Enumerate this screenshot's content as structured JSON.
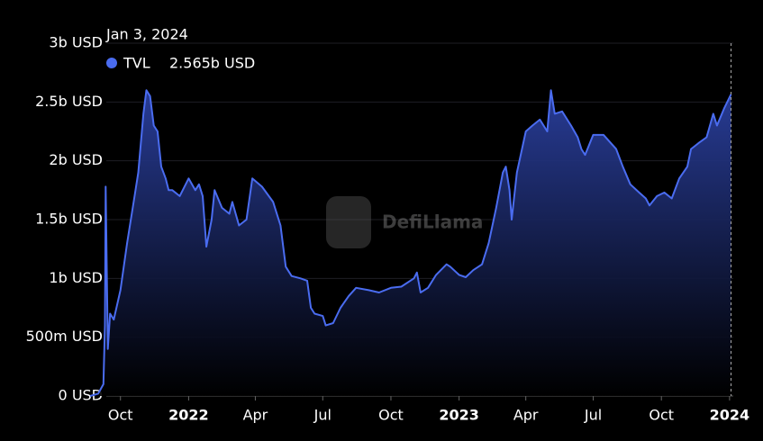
{
  "chart_data": {
    "type": "area",
    "watermark": "DefiLlama",
    "x": [
      "2021-08-21",
      "2021-09-01",
      "2021-09-08",
      "2021-09-10",
      "2021-09-11",
      "2021-09-14",
      "2021-09-17",
      "2021-09-22",
      "2021-10-01",
      "2021-10-10",
      "2021-10-20",
      "2021-10-25",
      "2021-11-01",
      "2021-11-05",
      "2021-11-10",
      "2021-11-15",
      "2021-11-20",
      "2021-11-25",
      "2021-12-01",
      "2021-12-05",
      "2021-12-10",
      "2021-12-20",
      "2022-01-01",
      "2022-01-10",
      "2022-01-15",
      "2022-01-20",
      "2022-01-25",
      "2022-02-01",
      "2022-02-05",
      "2022-02-15",
      "2022-02-25",
      "2022-03-01",
      "2022-03-10",
      "2022-03-20",
      "2022-03-28",
      "2022-04-10",
      "2022-04-25",
      "2022-05-05",
      "2022-05-12",
      "2022-05-20",
      "2022-06-01",
      "2022-06-10",
      "2022-06-15",
      "2022-06-20",
      "2022-07-01",
      "2022-07-05",
      "2022-07-15",
      "2022-07-25",
      "2022-08-05",
      "2022-08-15",
      "2022-09-01",
      "2022-09-15",
      "2022-10-01",
      "2022-10-15",
      "2022-11-01",
      "2022-11-05",
      "2022-11-10",
      "2022-11-20",
      "2022-12-01",
      "2022-12-15",
      "2022-12-20",
      "2023-01-01",
      "2023-01-10",
      "2023-01-20",
      "2023-02-01",
      "2023-02-10",
      "2023-02-20",
      "2023-03-01",
      "2023-03-05",
      "2023-03-10",
      "2023-03-13",
      "2023-03-20",
      "2023-04-01",
      "2023-04-10",
      "2023-04-20",
      "2023-04-30",
      "2023-05-05",
      "2023-05-10",
      "2023-05-20",
      "2023-06-01",
      "2023-06-10",
      "2023-06-15",
      "2023-06-20",
      "2023-07-01",
      "2023-07-15",
      "2023-08-01",
      "2023-08-10",
      "2023-08-20",
      "2023-09-01",
      "2023-09-10",
      "2023-09-15",
      "2023-09-25",
      "2023-10-05",
      "2023-10-15",
      "2023-10-25",
      "2023-11-05",
      "2023-11-10",
      "2023-11-20",
      "2023-12-01",
      "2023-12-10",
      "2023-12-15",
      "2023-12-25",
      "2024-01-03"
    ],
    "series": [
      {
        "name": "TVL",
        "color": "#4a6cf0",
        "values": [
          0.0,
          0.02,
          0.1,
          0.6,
          1.78,
          0.4,
          0.7,
          0.65,
          0.9,
          1.3,
          1.7,
          1.9,
          2.4,
          2.6,
          2.55,
          2.3,
          2.25,
          1.95,
          1.85,
          1.75,
          1.75,
          1.7,
          1.85,
          1.75,
          1.8,
          1.7,
          1.27,
          1.5,
          1.75,
          1.6,
          1.55,
          1.65,
          1.45,
          1.5,
          1.85,
          1.78,
          1.65,
          1.45,
          1.1,
          1.02,
          1.0,
          0.98,
          0.75,
          0.7,
          0.68,
          0.6,
          0.62,
          0.75,
          0.85,
          0.92,
          0.9,
          0.88,
          0.92,
          0.93,
          1.0,
          1.05,
          0.88,
          0.92,
          1.03,
          1.12,
          1.1,
          1.03,
          1.01,
          1.07,
          1.12,
          1.3,
          1.6,
          1.9,
          1.95,
          1.75,
          1.5,
          1.9,
          2.25,
          2.3,
          2.35,
          2.25,
          2.6,
          2.4,
          2.42,
          2.3,
          2.2,
          2.1,
          2.05,
          2.22,
          2.22,
          2.1,
          1.95,
          1.8,
          1.73,
          1.68,
          1.62,
          1.7,
          1.73,
          1.68,
          1.85,
          1.95,
          2.1,
          2.15,
          2.2,
          2.4,
          2.3,
          2.45,
          2.565
        ]
      }
    ],
    "tooltip": {
      "date": "Jan 3, 2024",
      "series": "TVL",
      "value": 2.565,
      "value_label": "2.565b USD"
    },
    "xlim": [
      "2021-08-21",
      "2024-01-06"
    ],
    "xticks": [
      {
        "value": "2021-10-01",
        "label": "Oct"
      },
      {
        "value": "2022-01-01",
        "label": "2022"
      },
      {
        "value": "2022-04-01",
        "label": "Apr"
      },
      {
        "value": "2022-07-01",
        "label": "Jul"
      },
      {
        "value": "2022-10-01",
        "label": "Oct"
      },
      {
        "value": "2023-01-01",
        "label": "2023"
      },
      {
        "value": "2023-04-01",
        "label": "Apr"
      },
      {
        "value": "2023-07-01",
        "label": "Jul"
      },
      {
        "value": "2023-10-01",
        "label": "Oct"
      },
      {
        "value": "2024-01-01",
        "label": "2024"
      }
    ],
    "ylim": [
      0,
      3
    ],
    "yticks": [
      {
        "value": 0,
        "label": "0 USD"
      },
      {
        "value": 0.5,
        "label": "500m USD"
      },
      {
        "value": 1,
        "label": "1b USD"
      },
      {
        "value": 1.5,
        "label": "1.5b USD"
      },
      {
        "value": 2,
        "label": "2b USD"
      },
      {
        "value": 2.5,
        "label": "2.5b USD"
      },
      {
        "value": 3,
        "label": "3b USD"
      }
    ],
    "grid": true
  }
}
